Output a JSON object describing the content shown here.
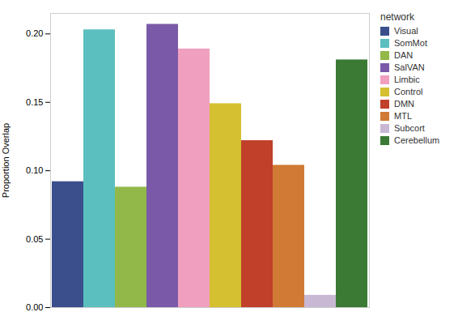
{
  "chart_data": {
    "type": "bar",
    "categories": [
      "Visual",
      "SomMot",
      "DAN",
      "SalVAN",
      "Limbic",
      "Control",
      "DMN",
      "MTL",
      "Subcort",
      "Cerebellum"
    ],
    "values": [
      0.092,
      0.203,
      0.088,
      0.207,
      0.189,
      0.149,
      0.122,
      0.104,
      0.009,
      0.181
    ],
    "colors": [
      "#3b4f8c",
      "#5bbfbf",
      "#92b84a",
      "#7a5aa8",
      "#f0a0be",
      "#d4c030",
      "#c0402a",
      "#d07a35",
      "#c8b8d4",
      "#3a7a35"
    ],
    "ylabel": "Proportion Overlap",
    "legend_title": "network",
    "legend": "right",
    "ylim": [
      0,
      0.215
    ],
    "yticks": [
      {
        "value": 0,
        "label": "0.00"
      },
      0.05,
      {
        "value": 0.1,
        "label": "0.10"
      },
      0.15,
      {
        "value": 0.2,
        "label": "0.20"
      }
    ],
    "grid": false,
    "tick_labels": "y"
  }
}
